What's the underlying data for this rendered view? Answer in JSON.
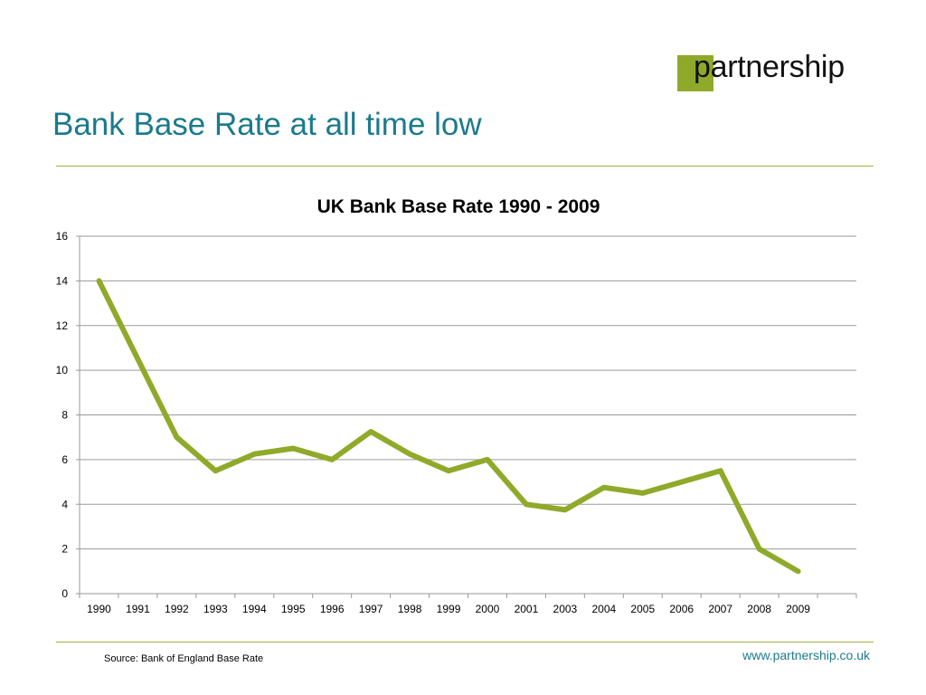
{
  "brand": {
    "logo_text": "partnership",
    "logo_color": "#8faa2a",
    "title_color": "#1b7a8c"
  },
  "slide": {
    "title": "Bank Base Rate at all time low",
    "source": "Source: Bank of England Base Rate",
    "url": "www.partnership.co.uk"
  },
  "chart_data": {
    "type": "line",
    "title": "UK Bank Base Rate 1990 - 2009",
    "xlabel": "",
    "ylabel": "",
    "categories": [
      "1990",
      "1991",
      "1992",
      "1993",
      "1994",
      "1995",
      "1996",
      "1997",
      "1998",
      "1999",
      "2000",
      "2001",
      "2003",
      "2004",
      "2005",
      "2006",
      "2007",
      "2008",
      "2009"
    ],
    "series": [
      {
        "values": [
          14,
          10.5,
          7,
          5.5,
          6.25,
          6.5,
          6,
          7.25,
          6.25,
          5.5,
          6,
          4,
          3.75,
          4.75,
          4.5,
          5,
          5.5,
          2,
          1
        ],
        "color": "#8faa2a"
      }
    ],
    "ylim": [
      0,
      16
    ],
    "yticks": [
      0,
      2,
      4,
      6,
      8,
      10,
      12,
      14,
      16
    ],
    "grid": true,
    "legend": "none",
    "extra_empty_category_slots": 1
  }
}
